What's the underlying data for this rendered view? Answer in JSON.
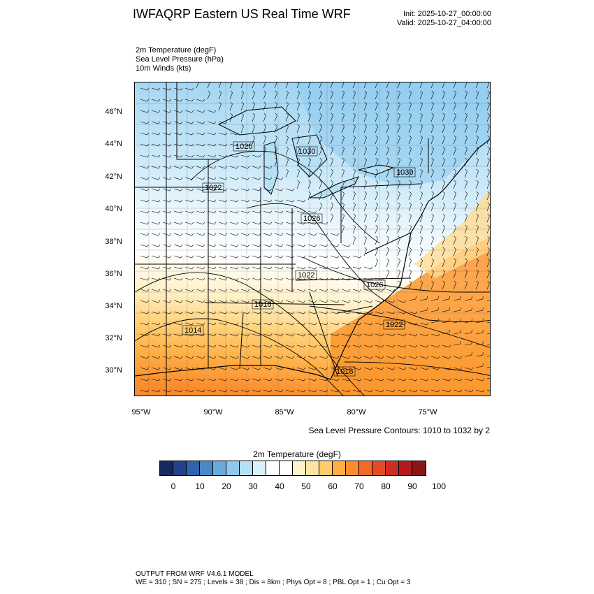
{
  "header": {
    "title": "IWFAQRP Eastern US Real Time WRF",
    "init": "Init: 2025-10-27_00:00:00",
    "valid": "Valid: 2025-10-27_04:00:00"
  },
  "fields": [
    "2m Temperature   (degF)",
    "Sea Level Pressure   (hPa)",
    "10m Winds   (kts)"
  ],
  "map": {
    "lat_labels": [
      "46°N",
      "44°N",
      "42°N",
      "40°N",
      "38°N",
      "36°N",
      "34°N",
      "32°N",
      "30°N"
    ],
    "lon_labels": [
      "95°W",
      "90°W",
      "85°W",
      "80°W",
      "75°W"
    ],
    "pressure_labels": [
      "1026",
      "1030",
      "1022",
      "1030",
      "1026",
      "1022",
      "1026",
      "1018",
      "1014",
      "1022",
      "1018"
    ],
    "contour_note": "Sea Level Pressure Contours: 1010 to 1032 by 2"
  },
  "colorbar": {
    "title": "2m Temperature  (degF)",
    "colors": [
      "#18275e",
      "#23418b",
      "#2f63ad",
      "#4a87c6",
      "#6aa9db",
      "#8ec8ec",
      "#b4e0f7",
      "#d9f0fb",
      "#ffffff",
      "#ffffff",
      "#fff3cc",
      "#ffe3a1",
      "#ffcb6b",
      "#ffae45",
      "#fb8c2e",
      "#f26a25",
      "#e44a24",
      "#cf2d22",
      "#b3191e",
      "#8b1518"
    ],
    "ticks": [
      "0",
      "10",
      "20",
      "30",
      "40",
      "50",
      "60",
      "70",
      "80",
      "90",
      "100"
    ]
  },
  "footer": {
    "line1": "OUTPUT FROM WRF V4.6.1 MODEL",
    "line2": "WE = 310 ; SN = 275 ; Levels = 38 ; Dis = 8km ; Phys Opt = 8 ; PBL Opt = 1 ; Cu Opt = 3"
  }
}
